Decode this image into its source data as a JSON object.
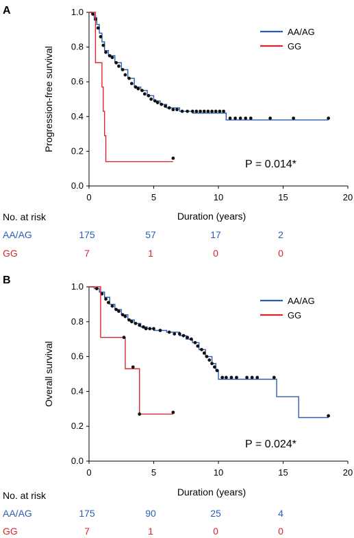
{
  "colors": {
    "aa_ag": "#2a5db0",
    "gg": "#d8252e",
    "axis": "#000000",
    "censor": "#111111"
  },
  "chart_data": [
    {
      "panel": "A",
      "type": "line",
      "step": true,
      "ylabel": "Progression-free survival",
      "xlabel": "Duration (years)",
      "xlim": [
        0,
        20
      ],
      "ylim": [
        0,
        1.0
      ],
      "xticks": [
        "0",
        "5",
        "10",
        "15",
        "20"
      ],
      "yticks": [
        "0.0",
        "0.2",
        "0.4",
        "0.6",
        "0.8",
        "1.0"
      ],
      "legend_position": "top-right",
      "annotation": "P = 0.014*",
      "series": [
        {
          "name": "AA/AG",
          "color": "#2a5db0",
          "points": [
            [
              0,
              1.0
            ],
            [
              0.2,
              0.99
            ],
            [
              0.4,
              0.97
            ],
            [
              0.6,
              0.93
            ],
            [
              0.8,
              0.88
            ],
            [
              1.0,
              0.83
            ],
            [
              1.2,
              0.78
            ],
            [
              1.5,
              0.75
            ],
            [
              2.0,
              0.71
            ],
            [
              2.5,
              0.67
            ],
            [
              3.0,
              0.62
            ],
            [
              3.5,
              0.57
            ],
            [
              4.0,
              0.55
            ],
            [
              4.5,
              0.52
            ],
            [
              5.0,
              0.49
            ],
            [
              5.5,
              0.47
            ],
            [
              6.0,
              0.45
            ],
            [
              7.0,
              0.43
            ],
            [
              8.0,
              0.42
            ],
            [
              10.5,
              0.42
            ],
            [
              10.6,
              0.38
            ],
            [
              18.5,
              0.38
            ]
          ],
          "censored": [
            [
              0.3,
              0.99
            ],
            [
              0.5,
              0.96
            ],
            [
              0.7,
              0.91
            ],
            [
              0.9,
              0.86
            ],
            [
              1.1,
              0.81
            ],
            [
              1.3,
              0.77
            ],
            [
              1.6,
              0.75
            ],
            [
              1.8,
              0.74
            ],
            [
              2.1,
              0.71
            ],
            [
              2.3,
              0.69
            ],
            [
              2.6,
              0.67
            ],
            [
              2.8,
              0.64
            ],
            [
              3.1,
              0.62
            ],
            [
              3.3,
              0.59
            ],
            [
              3.6,
              0.57
            ],
            [
              3.8,
              0.56
            ],
            [
              4.1,
              0.55
            ],
            [
              4.3,
              0.53
            ],
            [
              4.6,
              0.52
            ],
            [
              4.8,
              0.5
            ],
            [
              5.1,
              0.49
            ],
            [
              5.3,
              0.48
            ],
            [
              5.6,
              0.47
            ],
            [
              5.9,
              0.46
            ],
            [
              6.2,
              0.45
            ],
            [
              6.5,
              0.44
            ],
            [
              6.8,
              0.44
            ],
            [
              7.2,
              0.43
            ],
            [
              7.6,
              0.43
            ],
            [
              8.0,
              0.43
            ],
            [
              8.3,
              0.43
            ],
            [
              8.6,
              0.43
            ],
            [
              8.9,
              0.43
            ],
            [
              9.2,
              0.43
            ],
            [
              9.5,
              0.43
            ],
            [
              9.8,
              0.43
            ],
            [
              10.1,
              0.43
            ],
            [
              10.4,
              0.43
            ],
            [
              10.9,
              0.39
            ],
            [
              11.3,
              0.39
            ],
            [
              11.7,
              0.39
            ],
            [
              12.1,
              0.39
            ],
            [
              12.5,
              0.39
            ],
            [
              14.0,
              0.39
            ],
            [
              15.8,
              0.39
            ],
            [
              18.5,
              0.39
            ]
          ]
        },
        {
          "name": "GG",
          "color": "#d8252e",
          "points": [
            [
              0,
              1.0
            ],
            [
              0.5,
              1.0
            ],
            [
              0.5,
              0.71
            ],
            [
              1.0,
              0.71
            ],
            [
              1.0,
              0.57
            ],
            [
              1.1,
              0.57
            ],
            [
              1.1,
              0.43
            ],
            [
              1.2,
              0.43
            ],
            [
              1.2,
              0.29
            ],
            [
              1.3,
              0.29
            ],
            [
              1.3,
              0.14
            ],
            [
              6.5,
              0.14
            ]
          ],
          "censored": [
            [
              6.5,
              0.16
            ]
          ]
        }
      ],
      "risk_table": {
        "title": "No. at risk",
        "times": [
          0,
          5,
          10,
          15
        ],
        "rows": [
          {
            "label": "AA/AG",
            "color": "#2a5db0",
            "values": [
              "175",
              "57",
              "17",
              "2"
            ]
          },
          {
            "label": "GG",
            "color": "#d8252e",
            "values": [
              "7",
              "1",
              "0",
              "0"
            ]
          }
        ]
      }
    },
    {
      "panel": "B",
      "type": "line",
      "step": true,
      "ylabel": "Overall survival",
      "xlabel": "Duration (years)",
      "xlim": [
        0,
        20
      ],
      "ylim": [
        0,
        1.0
      ],
      "xticks": [
        "0",
        "5",
        "10",
        "15",
        "20"
      ],
      "yticks": [
        "0.0",
        "0.2",
        "0.4",
        "0.6",
        "0.8",
        "1.0"
      ],
      "legend_position": "top-right",
      "annotation": "P = 0.024*",
      "series": [
        {
          "name": "AA/AG",
          "color": "#2a5db0",
          "points": [
            [
              0,
              1.0
            ],
            [
              0.4,
              0.99
            ],
            [
              0.8,
              0.97
            ],
            [
              1.2,
              0.94
            ],
            [
              1.6,
              0.9
            ],
            [
              2.0,
              0.87
            ],
            [
              2.5,
              0.84
            ],
            [
              3.0,
              0.81
            ],
            [
              3.5,
              0.79
            ],
            [
              4.0,
              0.77
            ],
            [
              4.5,
              0.76
            ],
            [
              5.0,
              0.75
            ],
            [
              6.0,
              0.74
            ],
            [
              7.0,
              0.72
            ],
            [
              7.5,
              0.7
            ],
            [
              8.0,
              0.68
            ],
            [
              8.5,
              0.64
            ],
            [
              9.0,
              0.6
            ],
            [
              9.5,
              0.56
            ],
            [
              9.8,
              0.52
            ],
            [
              10.0,
              0.49
            ],
            [
              10.0,
              0.47
            ],
            [
              14.5,
              0.47
            ],
            [
              14.5,
              0.37
            ],
            [
              16.2,
              0.37
            ],
            [
              16.2,
              0.25
            ],
            [
              18.5,
              0.25
            ]
          ],
          "censored": [
            [
              0.6,
              0.99
            ],
            [
              1.0,
              0.96
            ],
            [
              1.3,
              0.93
            ],
            [
              1.5,
              0.91
            ],
            [
              1.8,
              0.89
            ],
            [
              2.1,
              0.87
            ],
            [
              2.3,
              0.86
            ],
            [
              2.6,
              0.84
            ],
            [
              2.8,
              0.83
            ],
            [
              3.1,
              0.81
            ],
            [
              3.3,
              0.8
            ],
            [
              3.6,
              0.79
            ],
            [
              3.9,
              0.78
            ],
            [
              4.2,
              0.77
            ],
            [
              4.4,
              0.76
            ],
            [
              4.7,
              0.76
            ],
            [
              5.0,
              0.76
            ],
            [
              5.5,
              0.75
            ],
            [
              6.2,
              0.74
            ],
            [
              6.6,
              0.73
            ],
            [
              7.0,
              0.73
            ],
            [
              7.3,
              0.72
            ],
            [
              7.6,
              0.71
            ],
            [
              7.9,
              0.7
            ],
            [
              8.2,
              0.68
            ],
            [
              8.4,
              0.66
            ],
            [
              8.7,
              0.64
            ],
            [
              8.9,
              0.62
            ],
            [
              9.1,
              0.6
            ],
            [
              9.3,
              0.58
            ],
            [
              9.5,
              0.56
            ],
            [
              9.7,
              0.54
            ],
            [
              9.9,
              0.52
            ],
            [
              10.3,
              0.48
            ],
            [
              10.6,
              0.48
            ],
            [
              11.0,
              0.48
            ],
            [
              11.4,
              0.48
            ],
            [
              12.2,
              0.48
            ],
            [
              12.6,
              0.48
            ],
            [
              13.0,
              0.48
            ],
            [
              14.3,
              0.48
            ],
            [
              18.5,
              0.26
            ]
          ]
        },
        {
          "name": "GG",
          "color": "#d8252e",
          "points": [
            [
              0,
              1.0
            ],
            [
              0.9,
              1.0
            ],
            [
              0.9,
              0.71
            ],
            [
              2.8,
              0.71
            ],
            [
              2.8,
              0.53
            ],
            [
              3.9,
              0.53
            ],
            [
              3.9,
              0.27
            ],
            [
              6.5,
              0.27
            ]
          ],
          "censored": [
            [
              2.7,
              0.71
            ],
            [
              3.4,
              0.54
            ],
            [
              3.9,
              0.27
            ],
            [
              6.5,
              0.28
            ]
          ]
        }
      ],
      "risk_table": {
        "title": "No. at risk",
        "times": [
          0,
          5,
          10,
          15
        ],
        "rows": [
          {
            "label": "AA/AG",
            "color": "#2a5db0",
            "values": [
              "175",
              "90",
              "25",
              "4"
            ]
          },
          {
            "label": "GG",
            "color": "#d8252e",
            "values": [
              "7",
              "1",
              "0",
              "0"
            ]
          }
        ]
      }
    }
  ]
}
